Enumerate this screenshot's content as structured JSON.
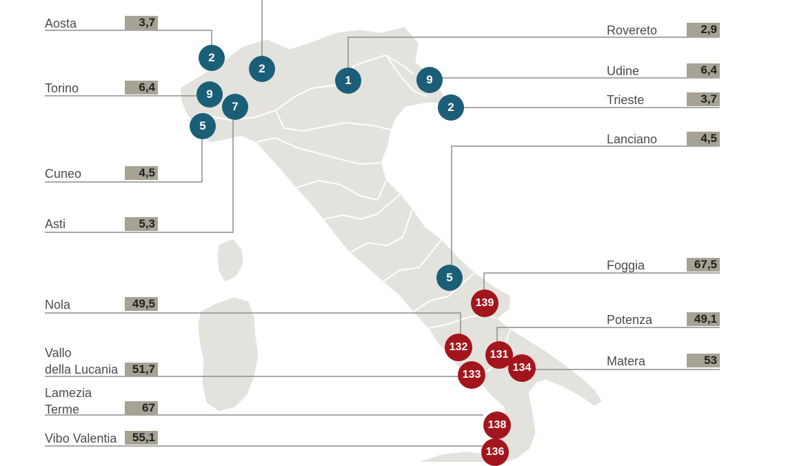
{
  "colors": {
    "land": "#e4e2dd",
    "border": "#ffffff",
    "leader": "#8c8c8c",
    "value_box": "#a6a294",
    "marker_low": "#1b5e78",
    "marker_high": "#a3151d"
  },
  "cities": [
    {
      "id": "aosta",
      "label": "Aosta",
      "value": "3,7",
      "marker": "2",
      "group": "low"
    },
    {
      "id": "top-clipped",
      "label": "",
      "value": "",
      "marker": "2",
      "group": "low"
    },
    {
      "id": "torino",
      "label": "Torino",
      "value": "6,4",
      "marker": "9",
      "group": "low"
    },
    {
      "id": "cuneo",
      "label": "Cuneo",
      "value": "4,5",
      "marker": "5",
      "group": "low"
    },
    {
      "id": "asti",
      "label": "Asti",
      "value": "5,3",
      "marker": "7",
      "group": "low"
    },
    {
      "id": "rovereto",
      "label": "Rovereto",
      "value": "2,9",
      "marker": "1",
      "group": "low"
    },
    {
      "id": "udine",
      "label": "Udine",
      "value": "6,4",
      "marker": "9",
      "group": "low"
    },
    {
      "id": "trieste",
      "label": "Trieste",
      "value": "3,7",
      "marker": "2",
      "group": "low"
    },
    {
      "id": "lanciano",
      "label": "Lanciano",
      "value": "4,5",
      "marker": "5",
      "group": "low"
    },
    {
      "id": "foggia",
      "label": "Foggia",
      "value": "67,5",
      "marker": "139",
      "group": "high"
    },
    {
      "id": "nola",
      "label": "Nola",
      "value": "49,5",
      "marker": "132",
      "group": "high"
    },
    {
      "id": "potenza",
      "label": "Potenza",
      "value": "49,1",
      "marker": "131",
      "group": "high"
    },
    {
      "id": "matera",
      "label": "Matera",
      "value": "53",
      "marker": "134",
      "group": "high"
    },
    {
      "id": "vallo",
      "label": "Vallo\ndella Lucania",
      "value": "51,7",
      "marker": "133",
      "group": "high"
    },
    {
      "id": "lamezia",
      "label": "Lamezia\nTerme",
      "value": "67",
      "marker": "138",
      "group": "high"
    },
    {
      "id": "vibo",
      "label": "Vibo Valentia",
      "value": "55,1",
      "marker": "136",
      "group": "high"
    }
  ]
}
